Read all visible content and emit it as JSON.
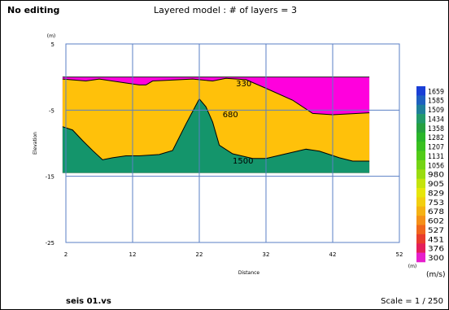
{
  "header": {
    "mode": "No editing",
    "title": "Layered model : # of layers = 3"
  },
  "footer": {
    "filename": "seis 01.vs",
    "scale": "Scale = 1 / 250"
  },
  "plot": {
    "y_unit": "(m)",
    "y_label": "Elevation",
    "x_label": "Distance",
    "x_unit": "(m)",
    "y_ticks": [
      5,
      -5,
      -15,
      -25
    ],
    "x_ticks": [
      2,
      12,
      22,
      32,
      42,
      52
    ],
    "xlim": [
      2,
      52
    ],
    "ylim": [
      -25,
      5
    ],
    "layer_labels": [
      "330",
      "680",
      "1500"
    ]
  },
  "colorbar": {
    "unit": "(m/s)",
    "values": [
      1659,
      1585,
      1509,
      1434,
      1358,
      1282,
      1207,
      1131,
      1056,
      980,
      905,
      829,
      753,
      678,
      602,
      527,
      451,
      376,
      300
    ],
    "colors": [
      "#1a3fd6",
      "#1f60c0",
      "#1f7f9a",
      "#229a6a",
      "#26a040",
      "#2ab52a",
      "#39c020",
      "#52cc18",
      "#74d414",
      "#9adc10",
      "#c4e40c",
      "#e6e60a",
      "#f2cf10",
      "#f5b214",
      "#f59018",
      "#f0661c",
      "#e83c2c",
      "#e41e5a",
      "#e61ecc"
    ]
  },
  "chart_data": {
    "type": "area",
    "title": "Layered model : # of layers = 3",
    "xlabel": "Distance",
    "ylabel": "Elevation",
    "xlim": [
      2,
      52
    ],
    "ylim": [
      -25,
      5
    ],
    "grid": true,
    "model_x_range": [
      1.5,
      47.5
    ],
    "bottom_elevation": -14.5,
    "series": [
      {
        "name": "330",
        "velocity": 330,
        "color": "#ff00dd",
        "top": {
          "x": [
            1.5,
            47.5
          ],
          "y": [
            0,
            0
          ]
        }
      },
      {
        "name": "680",
        "velocity": 680,
        "color": "#ffc10a",
        "top": {
          "x": [
            1.5,
            5,
            7,
            11,
            13,
            14,
            15,
            17,
            21,
            24,
            26,
            29,
            32,
            36,
            39,
            42,
            47.5
          ],
          "y": [
            -0.3,
            -0.6,
            -0.3,
            -0.9,
            -1.2,
            -1.2,
            -0.6,
            -0.5,
            -0.3,
            -0.6,
            -0.2,
            -0.4,
            -1.7,
            -3.5,
            -5.5,
            -5.7,
            -5.4
          ]
        }
      },
      {
        "name": "1500",
        "velocity": 1500,
        "color": "#14956b",
        "top": {
          "x": [
            1.5,
            3,
            4.5,
            6,
            7.5,
            9,
            11,
            13,
            16,
            18,
            20,
            22,
            23,
            24,
            25,
            27,
            30,
            32,
            35,
            38,
            40,
            43,
            45,
            47.5
          ],
          "y": [
            -7.5,
            -8.0,
            -9.6,
            -11.1,
            -12.5,
            -12.2,
            -11.9,
            -11.9,
            -11.7,
            -11.1,
            -7.1,
            -3.3,
            -4.5,
            -6.8,
            -10.3,
            -11.6,
            -12.3,
            -12.3,
            -11.6,
            -10.9,
            -11.2,
            -12.2,
            -12.7,
            -12.7
          ]
        }
      }
    ]
  }
}
